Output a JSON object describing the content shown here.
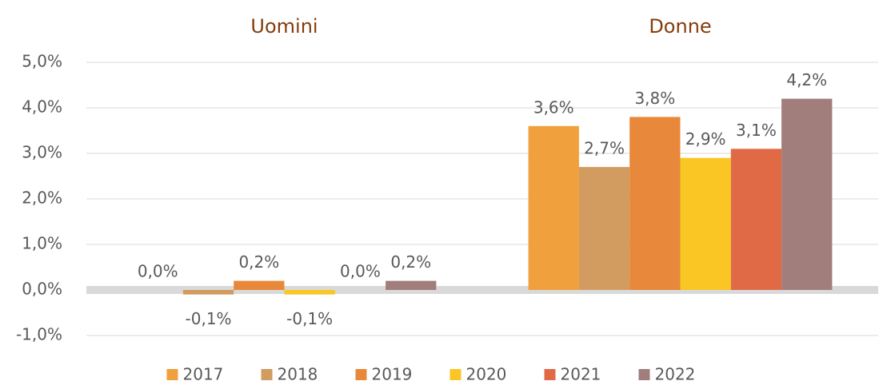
{
  "chart_data": {
    "type": "bar",
    "categories": [
      "Uomini",
      "Donne"
    ],
    "series": [
      {
        "name": "2017",
        "color": "#f0a03c",
        "values": [
          0.0,
          3.6
        ],
        "value_labels": [
          "0,0%",
          "3,6%"
        ]
      },
      {
        "name": "2018",
        "color": "#d29b5f",
        "values": [
          -0.1,
          2.7
        ],
        "value_labels": [
          "-0,1%",
          "2,7%"
        ]
      },
      {
        "name": "2019",
        "color": "#e8883a",
        "values": [
          0.2,
          3.8
        ],
        "value_labels": [
          "0,2%",
          "3,8%"
        ]
      },
      {
        "name": "2020",
        "color": "#f9c624",
        "values": [
          -0.1,
          2.9
        ],
        "value_labels": [
          "-0,1%",
          "2,9%"
        ]
      },
      {
        "name": "2021",
        "color": "#e06a46",
        "values": [
          0.0,
          3.1
        ],
        "value_labels": [
          "0,0%",
          "3,1%"
        ]
      },
      {
        "name": "2022",
        "color": "#a17e7c",
        "values": [
          0.2,
          4.2
        ],
        "value_labels": [
          "0,2%",
          "4,2%"
        ]
      }
    ],
    "ylim": [
      -1.0,
      5.0
    ],
    "yticks": [
      {
        "value": -1.0,
        "label": "-1,0%"
      },
      {
        "value": 0.0,
        "label": "0,0%"
      },
      {
        "value": 1.0,
        "label": "1,0%"
      },
      {
        "value": 2.0,
        "label": "2,0%"
      },
      {
        "value": 3.0,
        "label": "3,0%"
      },
      {
        "value": 4.0,
        "label": "4,0%"
      },
      {
        "value": 5.0,
        "label": "5,0%"
      }
    ],
    "grid": true,
    "legend": "bottom"
  }
}
